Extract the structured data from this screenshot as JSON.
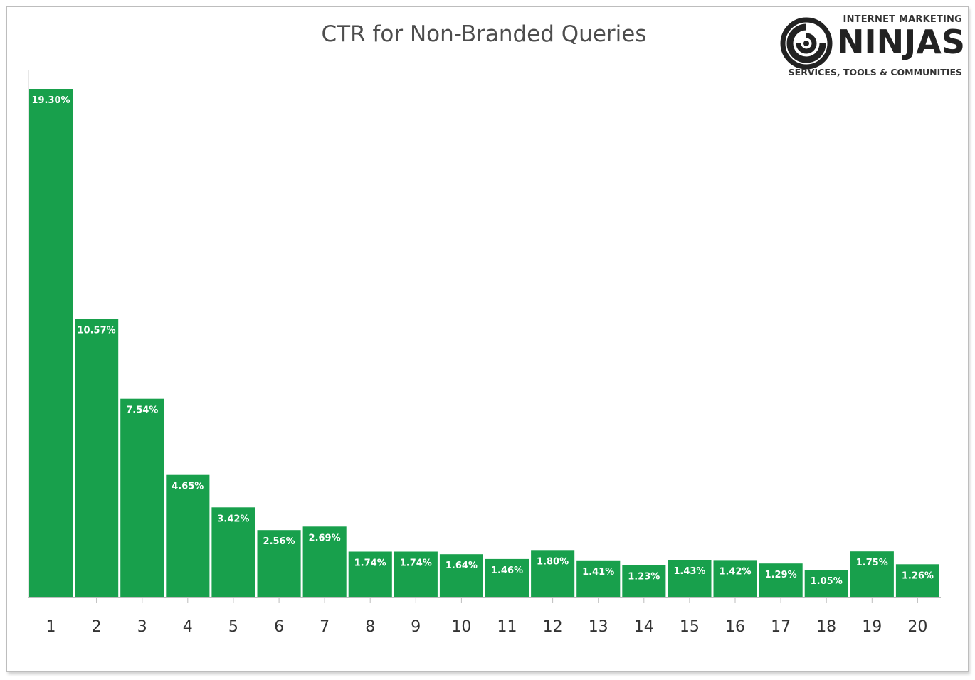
{
  "logo": {
    "top_text": "INTERNET MARKETING",
    "main_text": "NINJAS",
    "bottom_text": "SERVICES, TOOLS & COMMUNITIES",
    "icon": "swirl-logo-icon"
  },
  "chart_data": {
    "type": "bar",
    "title": "CTR for Non-Branded Queries",
    "xlabel": "",
    "ylabel": "",
    "ylim": [
      0,
      20
    ],
    "grid": false,
    "legend": "none",
    "bar_color": "#18a04c",
    "categories": [
      "1",
      "2",
      "3",
      "4",
      "5",
      "6",
      "7",
      "8",
      "9",
      "10",
      "11",
      "12",
      "13",
      "14",
      "15",
      "16",
      "17",
      "18",
      "19",
      "20"
    ],
    "values": [
      19.3,
      10.57,
      7.54,
      4.65,
      3.42,
      2.56,
      2.69,
      1.74,
      1.74,
      1.64,
      1.46,
      1.8,
      1.41,
      1.23,
      1.43,
      1.42,
      1.29,
      1.05,
      1.75,
      1.26
    ],
    "data_labels": [
      "19.30%",
      "10.57%",
      "7.54%",
      "4.65%",
      "3.42%",
      "2.56%",
      "2.69%",
      "1.74%",
      "1.74%",
      "1.64%",
      "1.46%",
      "1.80%",
      "1.41%",
      "1.23%",
      "1.43%",
      "1.42%",
      "1.29%",
      "1.05%",
      "1.75%",
      "1.26%"
    ]
  }
}
